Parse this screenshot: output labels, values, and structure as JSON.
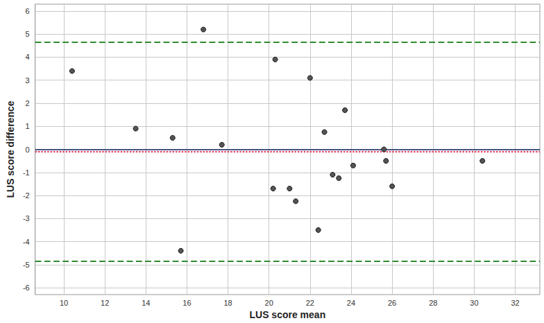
{
  "chart_data": {
    "type": "scatter",
    "x_label": "LUS score mean",
    "y_label": "LUS score difference",
    "x": [
      10.4,
      13.5,
      15.3,
      15.7,
      16.8,
      17.7,
      20.2,
      20.3,
      21.0,
      21.3,
      22.0,
      22.4,
      22.7,
      23.1,
      23.4,
      23.7,
      24.1,
      25.6,
      25.7,
      26.0,
      30.4
    ],
    "values": [
      3.4,
      0.9,
      0.5,
      -4.4,
      5.2,
      0.2,
      -1.7,
      3.9,
      -1.7,
      -2.25,
      3.1,
      -3.5,
      0.75,
      -1.1,
      -1.25,
      1.7,
      -0.7,
      0.0,
      -0.5,
      -1.6,
      -0.5
    ],
    "color": "#555555",
    "marker": "circle",
    "xlim": [
      8.6,
      33.2
    ],
    "xticks": [
      10,
      12,
      14,
      16,
      18,
      20,
      22,
      24,
      26,
      28,
      30,
      32
    ],
    "ylim": [
      -6.3,
      6.3
    ],
    "yticks": [
      -6,
      -5,
      -4,
      -3,
      -2,
      -1,
      0,
      1,
      2,
      3,
      4,
      5,
      6
    ],
    "grid": true,
    "reference_lines": [
      {
        "value": 4.65,
        "color": "#2e8b2e",
        "line_style": "dashed"
      },
      {
        "value": 0,
        "color": "#1f2a6b",
        "line_style": "solid"
      },
      {
        "value": -0.1,
        "color": "#e8254b",
        "line_style": "dotted"
      },
      {
        "value": -4.85,
        "color": "#2e8b2e",
        "line_style": "dashed"
      }
    ]
  }
}
